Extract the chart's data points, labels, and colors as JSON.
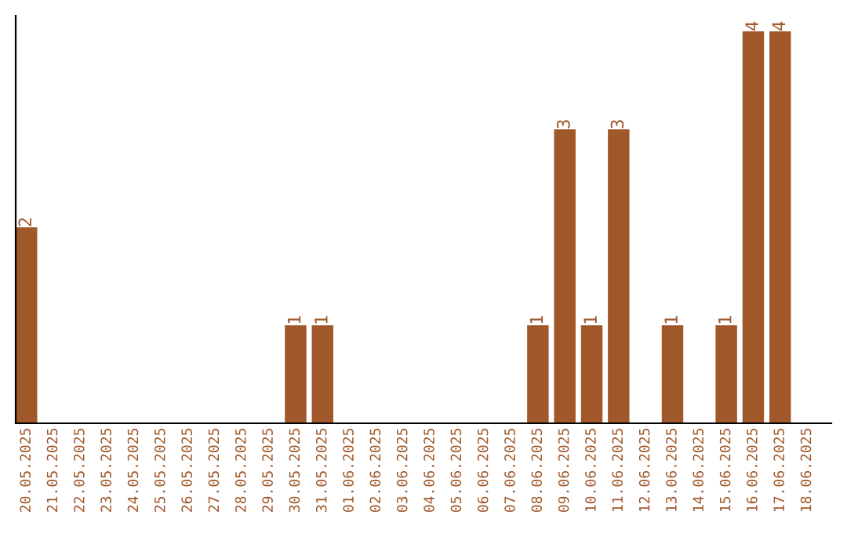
{
  "chart_data": {
    "type": "bar",
    "categories": [
      "20.05.2025",
      "21.05.2025",
      "22.05.2025",
      "23.05.2025",
      "24.05.2025",
      "25.05.2025",
      "26.05.2025",
      "27.05.2025",
      "28.05.2025",
      "29.05.2025",
      "30.05.2025",
      "31.05.2025",
      "01.06.2025",
      "02.06.2025",
      "03.06.2025",
      "04.06.2025",
      "05.06.2025",
      "06.06.2025",
      "07.06.2025",
      "08.06.2025",
      "09.06.2025",
      "10.06.2025",
      "11.06.2025",
      "12.06.2025",
      "13.06.2025",
      "14.06.2025",
      "15.06.2025",
      "16.06.2025",
      "17.06.2025",
      "18.06.2025"
    ],
    "values": [
      2,
      0,
      0,
      0,
      0,
      0,
      0,
      0,
      0,
      0,
      1,
      1,
      0,
      0,
      0,
      0,
      0,
      0,
      0,
      1,
      3,
      1,
      3,
      0,
      1,
      0,
      1,
      4,
      4,
      0
    ],
    "value_labels": [
      "2",
      null,
      null,
      null,
      null,
      null,
      null,
      null,
      null,
      null,
      "1",
      "1",
      null,
      null,
      null,
      null,
      null,
      null,
      null,
      "1",
      "3",
      "1",
      "3",
      null,
      "1",
      null,
      "1",
      "4",
      "4",
      null
    ],
    "color": "#a0582a",
    "tick_labels": "x",
    "grid": false
  }
}
